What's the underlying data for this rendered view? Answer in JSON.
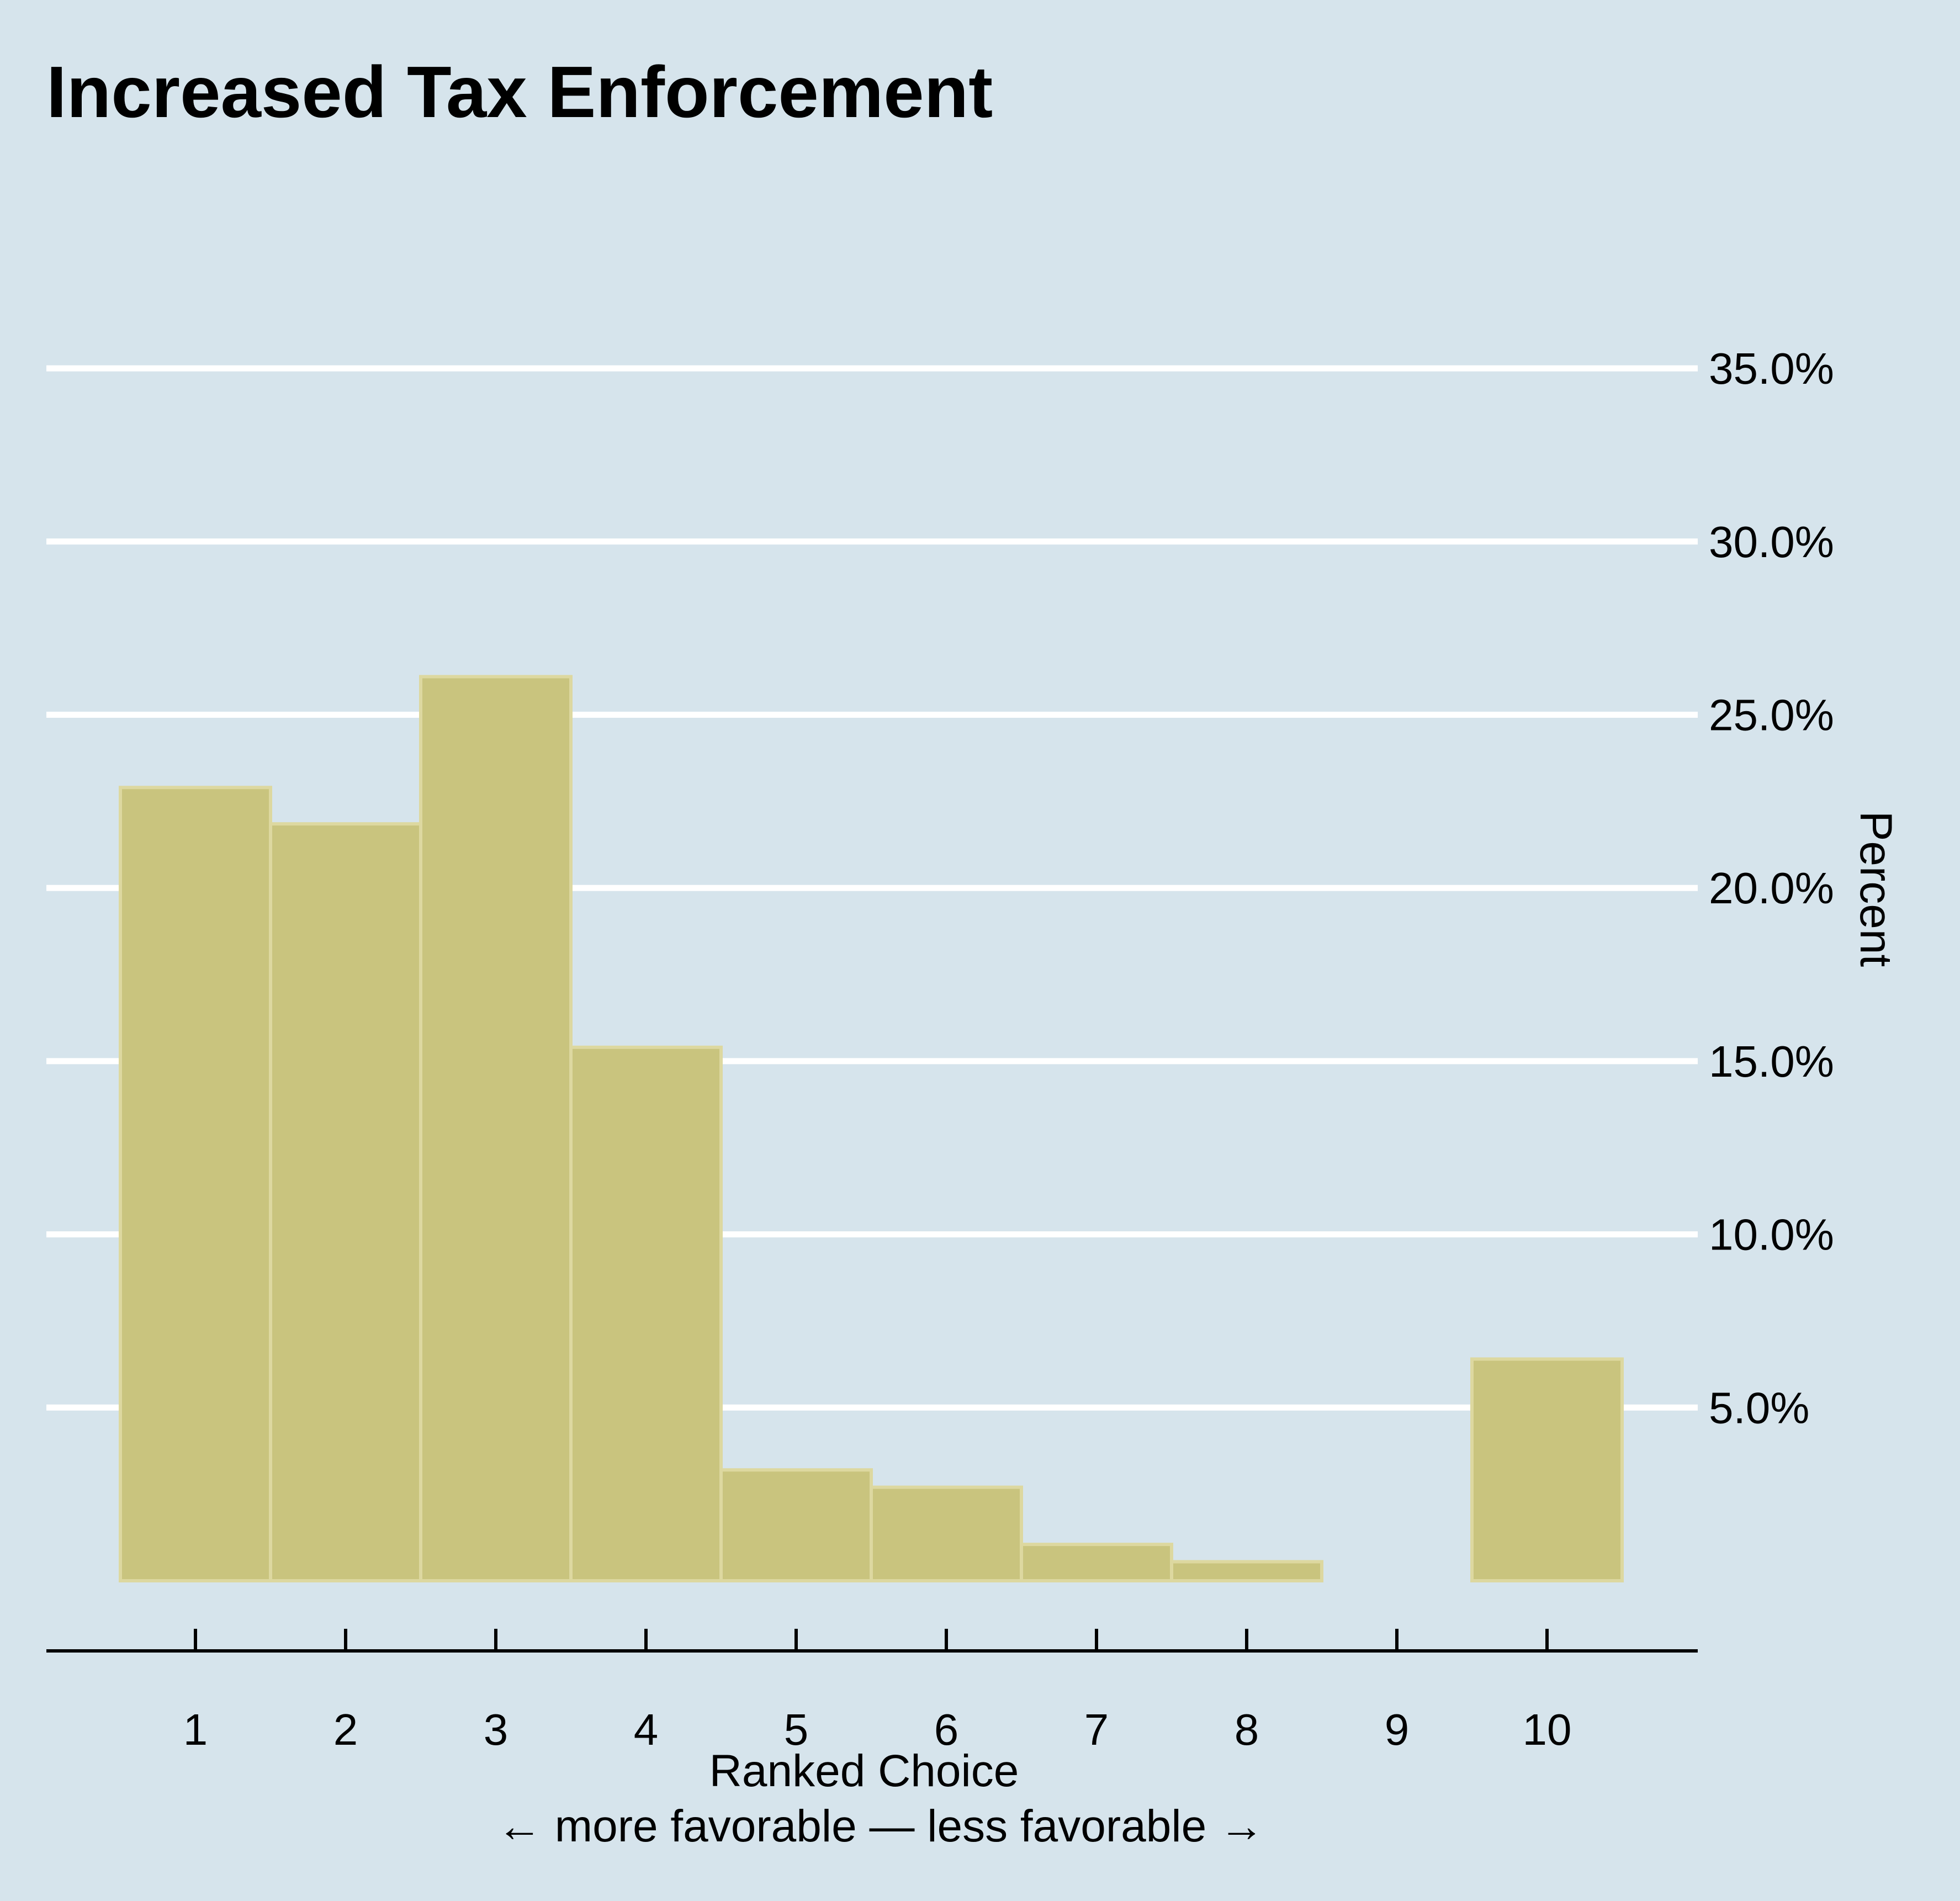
{
  "chart_data": {
    "type": "bar",
    "title": "Increased Tax Enforcement",
    "xlabel": "Ranked Choice",
    "xlabel_note": "← more favorable — less favorable →",
    "ylabel": "Percent",
    "categories": [
      "1",
      "2",
      "3",
      "4",
      "5",
      "6",
      "7",
      "8",
      "9",
      "10"
    ],
    "values": [
      22.9,
      21.85,
      26.1,
      15.4,
      3.2,
      2.7,
      1.05,
      0.55,
      0.0,
      6.4
    ],
    "ylim": [
      0,
      35
    ],
    "y_ticks": [
      5,
      10,
      15,
      20,
      25,
      30,
      35
    ],
    "y_tick_labels": [
      "5.0%",
      "10.0%",
      "15.0%",
      "20.0%",
      "25.0%",
      "30.0%",
      "35.0%"
    ],
    "y_axis_position": "right",
    "grid": true,
    "legend": "none",
    "colors": {
      "background": "#d6e4ec",
      "bar_fill": "#c9c47e",
      "bar_edge": "#ddd8a0",
      "grid": "#ffffff",
      "axis": "#000000",
      "text": "#000000"
    }
  }
}
